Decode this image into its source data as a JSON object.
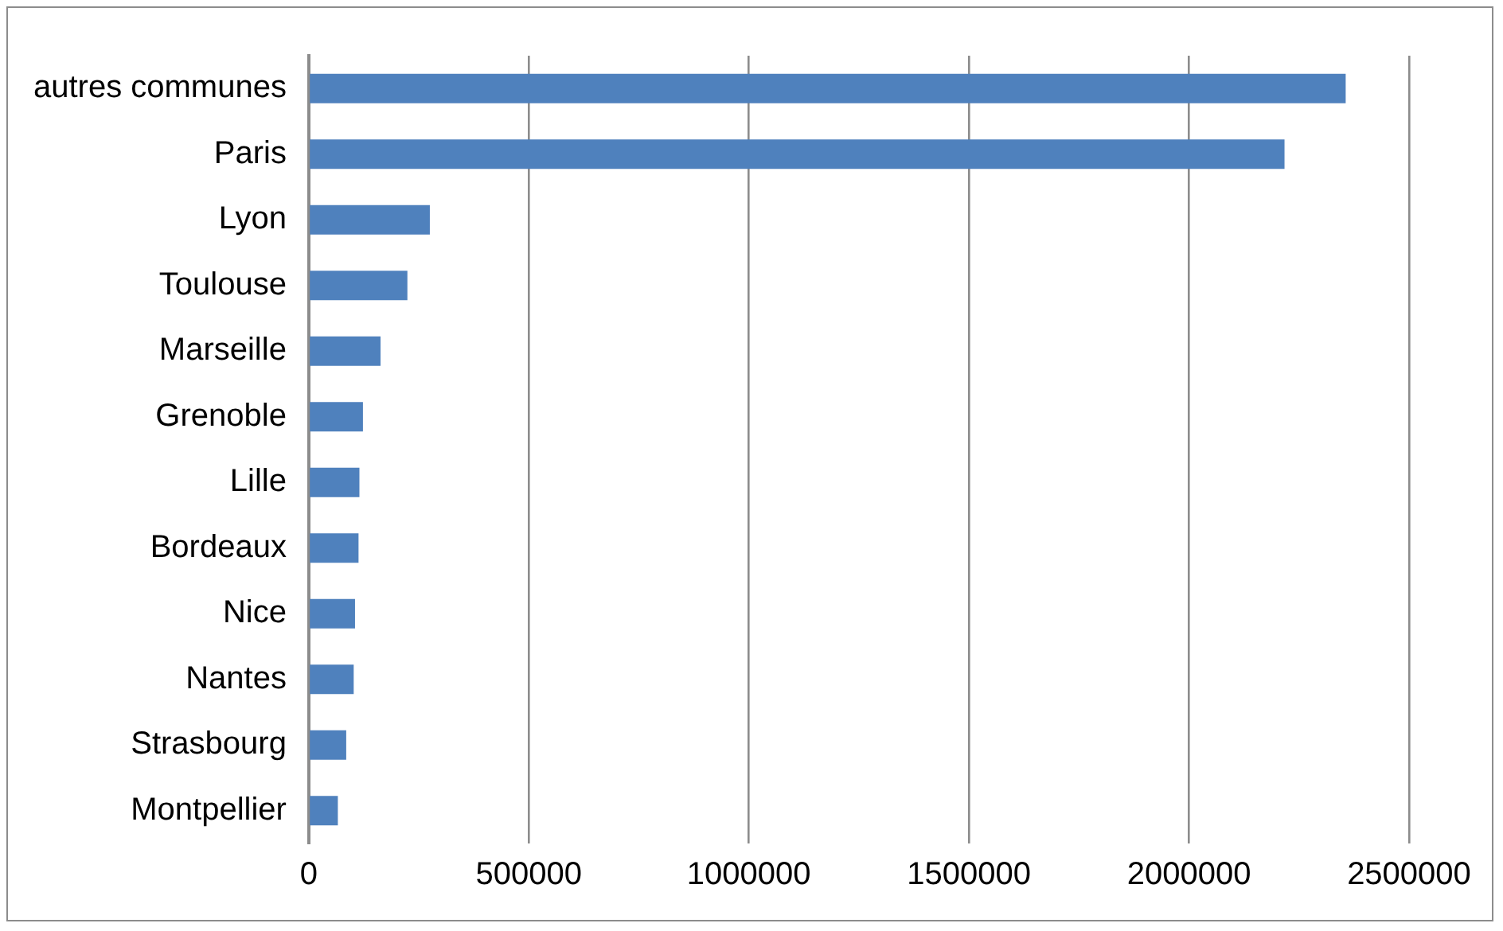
{
  "chart_data": {
    "type": "bar",
    "orientation": "horizontal",
    "categories": [
      "autres communes",
      "Paris",
      "Lyon",
      "Toulouse",
      "Marseille",
      "Grenoble",
      "Lille",
      "Bordeaux",
      "Nice",
      "Nantes",
      "Strasbourg",
      "Montpellier"
    ],
    "values": [
      2356000,
      2217000,
      275000,
      224000,
      163000,
      123000,
      115000,
      113000,
      105000,
      102000,
      85000,
      66000
    ],
    "color": "#4f81bd",
    "xlim": [
      0,
      2500000
    ],
    "xticks": [
      0,
      500000,
      1000000,
      1500000,
      2000000,
      2500000
    ],
    "grid": "x"
  }
}
